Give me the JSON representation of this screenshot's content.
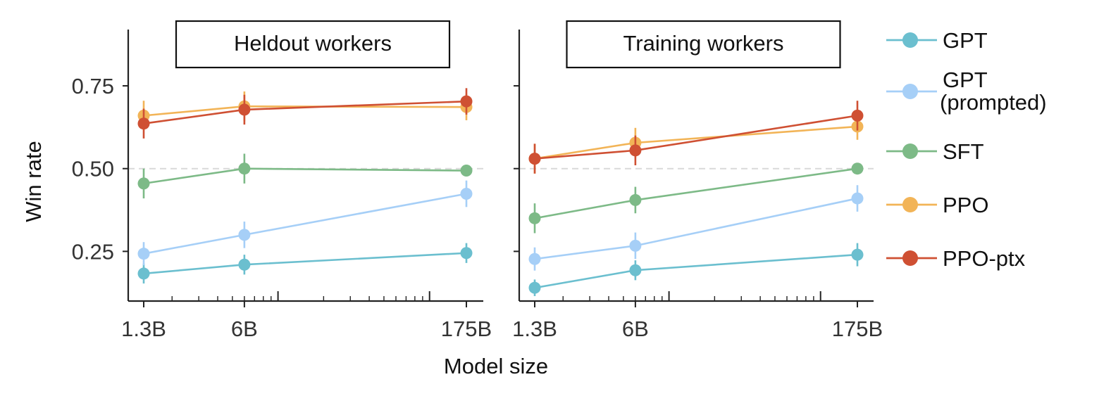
{
  "chart_data": {
    "type": "line",
    "xlabel": "Model size",
    "ylabel": "Win rate",
    "x_scale": "log",
    "x_ticks": [
      "1.3B",
      "6B",
      "175B"
    ],
    "x_values_billions": [
      1.3,
      6,
      175
    ],
    "y_ticks": [
      0.25,
      0.5,
      0.75
    ],
    "y_tick_labels": [
      "0.25",
      "0.50",
      "0.75"
    ],
    "ylim": [
      0.1,
      0.92
    ],
    "reference_line": 0.5,
    "panels": [
      {
        "title": "Heldout workers",
        "series": [
          {
            "name": "GPT",
            "values": [
              0.183,
              0.21,
              0.245
            ],
            "err": [
              0.03,
              0.03,
              0.03
            ]
          },
          {
            "name": "GPT (prompted)",
            "values": [
              0.243,
              0.3,
              0.424
            ],
            "err": [
              0.035,
              0.04,
              0.04
            ]
          },
          {
            "name": "SFT",
            "values": [
              0.455,
              0.5,
              0.494
            ],
            "err": [
              0.045,
              0.045,
              0.012
            ]
          },
          {
            "name": "PPO",
            "values": [
              0.66,
              0.688,
              0.686
            ],
            "err": [
              0.045,
              0.045,
              0.04
            ]
          },
          {
            "name": "PPO-ptx",
            "values": [
              0.636,
              0.678,
              0.703
            ],
            "err": [
              0.045,
              0.045,
              0.04
            ]
          }
        ]
      },
      {
        "title": "Training workers",
        "series": [
          {
            "name": "GPT",
            "values": [
              0.14,
              0.193,
              0.24
            ],
            "err": [
              0.025,
              0.03,
              0.035
            ]
          },
          {
            "name": "GPT (prompted)",
            "values": [
              0.227,
              0.267,
              0.41
            ],
            "err": [
              0.035,
              0.04,
              0.04
            ]
          },
          {
            "name": "SFT",
            "values": [
              0.35,
              0.405,
              0.5
            ],
            "err": [
              0.045,
              0.04,
              0.012
            ]
          },
          {
            "name": "PPO",
            "values": [
              0.53,
              0.578,
              0.627
            ],
            "err": [
              0.045,
              0.045,
              0.04
            ]
          },
          {
            "name": "PPO-ptx",
            "values": [
              0.53,
              0.555,
              0.66
            ],
            "err": [
              0.045,
              0.045,
              0.045
            ]
          }
        ]
      }
    ],
    "legend": {
      "placement": "right",
      "entries": [
        {
          "name": "GPT",
          "lines": [
            "GPT"
          ],
          "color": "#6bbfcf"
        },
        {
          "name": "GPT (prompted)",
          "lines": [
            "GPT",
            "(prompted)"
          ],
          "color": "#a6cff7"
        },
        {
          "name": "SFT",
          "lines": [
            "SFT"
          ],
          "color": "#7dba87"
        },
        {
          "name": "PPO",
          "lines": [
            "PPO"
          ],
          "color": "#f2b457"
        },
        {
          "name": "PPO-ptx",
          "lines": [
            "PPO-ptx"
          ],
          "color": "#cf5033"
        }
      ]
    },
    "grid": false
  }
}
